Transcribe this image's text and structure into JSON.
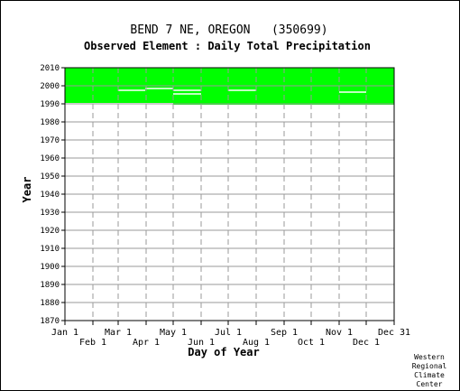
{
  "chart_data": {
    "type": "heatmap",
    "title": "BEND 7 NE, OREGON   (350699)",
    "subtitle": "Observed Element : Daily Total Precipitation",
    "xlabel": "Day of Year",
    "ylabel": "Year",
    "ylim": [
      1870,
      2010
    ],
    "yticks": [
      1870,
      1880,
      1890,
      1900,
      1910,
      1920,
      1930,
      1940,
      1950,
      1960,
      1970,
      1980,
      1990,
      2000,
      2010
    ],
    "xticks": [
      {
        "label": "Jan 1",
        "day": 1,
        "row": "top"
      },
      {
        "label": "Feb 1",
        "day": 32,
        "row": "bottom"
      },
      {
        "label": "Mar 1",
        "day": 60,
        "row": "top"
      },
      {
        "label": "Apr 1",
        "day": 91,
        "row": "bottom"
      },
      {
        "label": "May 1",
        "day": 121,
        "row": "top"
      },
      {
        "label": "Jun 1",
        "day": 152,
        "row": "bottom"
      },
      {
        "label": "Jul 1",
        "day": 182,
        "row": "top"
      },
      {
        "label": "Aug 1",
        "day": 213,
        "row": "bottom"
      },
      {
        "label": "Sep 1",
        "day": 244,
        "row": "top"
      },
      {
        "label": "Oct 1",
        "day": 274,
        "row": "bottom"
      },
      {
        "label": "Nov 1",
        "day": 305,
        "row": "top"
      },
      {
        "label": "Dec 1",
        "day": 335,
        "row": "bottom"
      },
      {
        "label": "Dec 31",
        "day": 366,
        "row": "top"
      }
    ],
    "xlim": [
      1,
      366
    ],
    "data_coverage": {
      "color": "#00ff00",
      "year_start": 1990.5,
      "year_end": 2010,
      "partial_first_year": {
        "year": 1990,
        "from_day": 121
      },
      "missing_segments": [
        {
          "year": 1997.5,
          "day_start": 60,
          "day_end": 90
        },
        {
          "year": 1998.5,
          "day_start": 90,
          "day_end": 121
        },
        {
          "year": 1997.5,
          "day_start": 121,
          "day_end": 152
        },
        {
          "year": 1995.5,
          "day_start": 121,
          "day_end": 152
        },
        {
          "year": 1997.5,
          "day_start": 182,
          "day_end": 213
        },
        {
          "year": 1996.5,
          "day_start": 305,
          "day_end": 335
        }
      ]
    },
    "grid": true
  },
  "credit": [
    "Western",
    "Regional",
    "Climate",
    "Center"
  ]
}
